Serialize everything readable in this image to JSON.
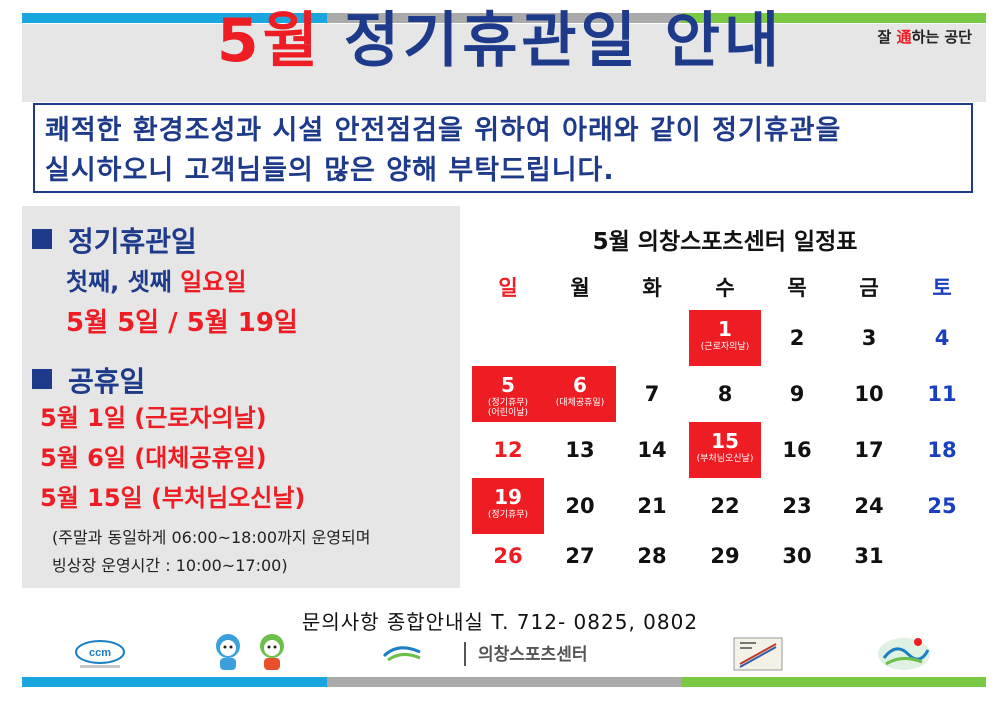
{
  "header": {
    "title_red": "5월",
    "title_blue": "정기휴관일 안내",
    "slogan_pre": "잘 ",
    "slogan_highlight": "通",
    "slogan_post": "하는 공단"
  },
  "notice": {
    "line1": "쾌적한 환경조성과 시설 안전점검을 위하여 아래와 같이 정기휴관을",
    "line2": "실시하오니 고객님들의 많은 양해 부탁드립니다."
  },
  "closures": {
    "heading": "정기휴관일",
    "rule_blue": "첫째, 셋째 ",
    "rule_red": "일요일",
    "dates": "5월 5일 / 5월 19일"
  },
  "public_holidays": {
    "heading": "공휴일",
    "items": [
      "5월 1일 (근로자의날)",
      "5월 6일 (대체공휴일)",
      "5월 15일 (부처님오신날)"
    ],
    "note_line1": "(주말과 동일하게 06:00~18:00까지 운영되며",
    "note_line2": "빙상장 운영시간 : 10:00~17:00)"
  },
  "calendar": {
    "title": "5월 의창스포츠센터 일정표",
    "weekdays": [
      "일",
      "월",
      "화",
      "수",
      "목",
      "금",
      "토"
    ],
    "weekday_colors": [
      "#ee1d23",
      "#111111",
      "#111111",
      "#111111",
      "#111111",
      "#111111",
      "#1a3fbf"
    ],
    "start_offset": 3,
    "days_in_month": 31,
    "sunday_color": "#ee1d23",
    "saturday_color": "#1a3fbf",
    "holidays": {
      "1": "(근로자의날)",
      "5": "(정기휴무)\n(어린이날)",
      "6": "(대체공휴일)",
      "15": "(부처님오신날)",
      "19": "(정기휴무)"
    }
  },
  "footer": {
    "contact": "문의사항   종합안내실 T. 712- 0825, 0802",
    "ccm_label": "ccm",
    "sports_center_name": "의창스포츠센터"
  }
}
